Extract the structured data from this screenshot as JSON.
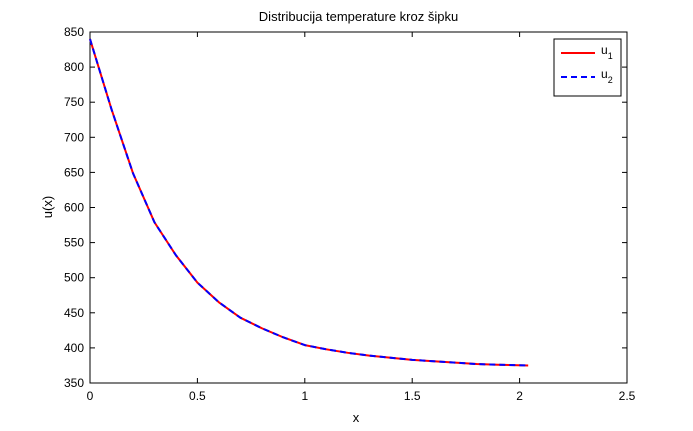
{
  "chart_data": {
    "type": "line",
    "title": "Distribucija temperature kroz šipku",
    "xlabel": "x",
    "ylabel": "u(x)",
    "xlim": [
      0,
      2.5
    ],
    "ylim": [
      350,
      850
    ],
    "xticks": [
      0,
      0.5,
      1,
      1.5,
      2,
      2.5
    ],
    "yticks": [
      350,
      400,
      450,
      500,
      550,
      600,
      650,
      700,
      750,
      800,
      850
    ],
    "xtick_labels": [
      "0",
      "0.5",
      "1",
      "1.5",
      "2",
      "2.5"
    ],
    "ytick_labels": [
      "350",
      "400",
      "450",
      "500",
      "550",
      "600",
      "650",
      "700",
      "750",
      "800",
      "850"
    ],
    "grid": false,
    "legend_position": "top-right",
    "x": [
      0,
      0.1,
      0.2,
      0.3,
      0.4,
      0.5,
      0.6,
      0.7,
      0.8,
      0.9,
      1.0,
      1.1,
      1.2,
      1.3,
      1.4,
      1.5,
      1.6,
      1.7,
      1.8,
      1.9,
      2.04
    ],
    "series": [
      {
        "name": "u",
        "subscript": "1",
        "color": "#ff0000",
        "style": "solid",
        "values": [
          840,
          740,
          649,
          579,
          532,
          493,
          465,
          443,
          428,
          415,
          404,
          398,
          393,
          389,
          386,
          383,
          381,
          379,
          377,
          376,
          375
        ]
      },
      {
        "name": "u",
        "subscript": "2",
        "color": "#0000ff",
        "style": "dashed",
        "values": [
          840,
          740,
          649,
          579,
          532,
          493,
          465,
          443,
          428,
          415,
          404,
          398,
          393,
          389,
          386,
          383,
          381,
          379,
          377,
          376,
          375
        ]
      }
    ]
  }
}
